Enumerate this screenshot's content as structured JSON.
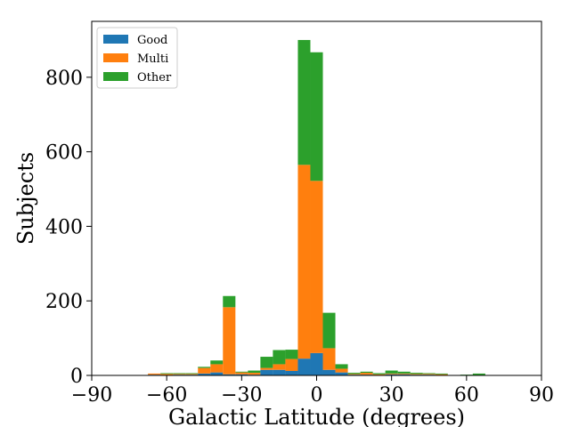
{
  "chart_data": {
    "type": "bar",
    "stacked": true,
    "title": "",
    "xlabel": "Galactic Latitude (degrees)",
    "ylabel": "Subjects",
    "xlim": [
      -90,
      90
    ],
    "ylim": [
      0,
      950
    ],
    "xticks": [
      -90,
      -60,
      -30,
      0,
      30,
      60,
      90
    ],
    "yticks": [
      0,
      200,
      400,
      600,
      800
    ],
    "xtick_labels": [
      "−90",
      "−60",
      "−30",
      "0",
      "30",
      "60",
      "90"
    ],
    "ytick_labels": [
      "0",
      "200",
      "400",
      "600",
      "800"
    ],
    "bin_width": 5,
    "legend_position": "top-left",
    "grid": false,
    "categories": [
      -65,
      -60,
      -55,
      -50,
      -45,
      -40,
      -35,
      -30,
      -25,
      -20,
      -15,
      -10,
      -5,
      0,
      5,
      10,
      15,
      20,
      25,
      30,
      35,
      40,
      45,
      50,
      55,
      60,
      65
    ],
    "series": [
      {
        "name": "Good",
        "color": "#1f77b4",
        "values": [
          2,
          1,
          2,
          2,
          5,
          8,
          3,
          3,
          2,
          15,
          15,
          12,
          45,
          60,
          15,
          8,
          2,
          2,
          1,
          3,
          3,
          2,
          2,
          1,
          0,
          0,
          0
        ]
      },
      {
        "name": "Multi",
        "color": "#ff7f0e",
        "values": [
          3,
          3,
          2,
          2,
          15,
          22,
          180,
          5,
          5,
          5,
          15,
          32,
          520,
          462,
          58,
          10,
          2,
          5,
          2,
          2,
          2,
          2,
          2,
          2,
          0,
          0,
          0
        ]
      },
      {
        "name": "Other",
        "color": "#2ca02c",
        "values": [
          0,
          2,
          2,
          2,
          3,
          10,
          30,
          2,
          6,
          30,
          38,
          25,
          335,
          345,
          95,
          12,
          3,
          3,
          3,
          8,
          5,
          3,
          2,
          2,
          0,
          2,
          5
        ]
      }
    ]
  }
}
